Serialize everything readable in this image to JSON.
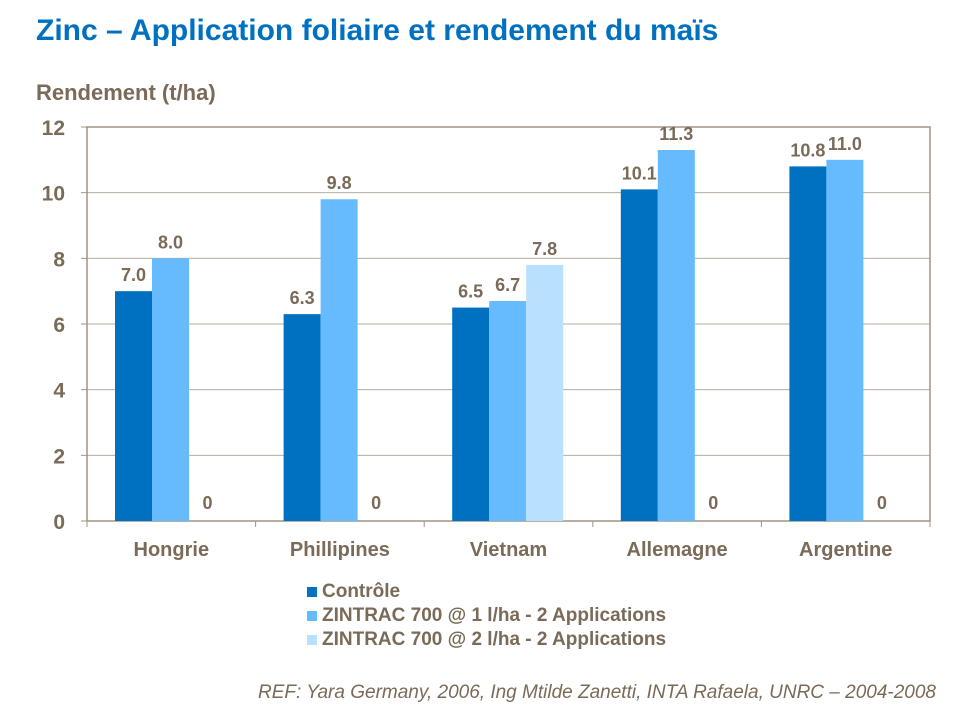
{
  "chart_data": {
    "type": "bar",
    "title": "Zinc – Application foliaire et rendement du maïs",
    "ylabel": "Rendement (t/ha)",
    "xlabel": "",
    "ylim": [
      0,
      12
    ],
    "yticks": [
      0,
      2,
      4,
      6,
      8,
      10,
      12
    ],
    "grid": true,
    "legend_position": "bottom",
    "categories": [
      "Hongrie",
      "Phillipines",
      "Vietnam",
      "Allemagne",
      "Argentine"
    ],
    "series": [
      {
        "name": "Contrôle",
        "color": "#0070c0",
        "values": [
          7.0,
          6.3,
          6.5,
          10.1,
          10.8
        ],
        "labels": [
          "7.0",
          "6.3",
          "6.5",
          "10.1",
          "10.8"
        ]
      },
      {
        "name": "ZINTRAC 700 @ 1 l/ha - 2 Applications",
        "color": "#66bbff",
        "values": [
          8.0,
          9.8,
          6.7,
          11.3,
          11.0
        ],
        "labels": [
          "8.0",
          "9.8",
          "6.7",
          "11.3",
          "11.0"
        ]
      },
      {
        "name": "ZINTRAC 700 @ 2 l/ha - 2 Applications",
        "color": "#b8e0ff",
        "values": [
          0,
          0,
          7.8,
          0,
          0
        ],
        "labels": [
          "0",
          "0",
          "7.8",
          "0",
          "0"
        ]
      }
    ]
  },
  "reference": "REF: Yara Germany, 2006, Ing Mtilde Zanetti, INTA Rafaela, UNRC – 2004-2008"
}
